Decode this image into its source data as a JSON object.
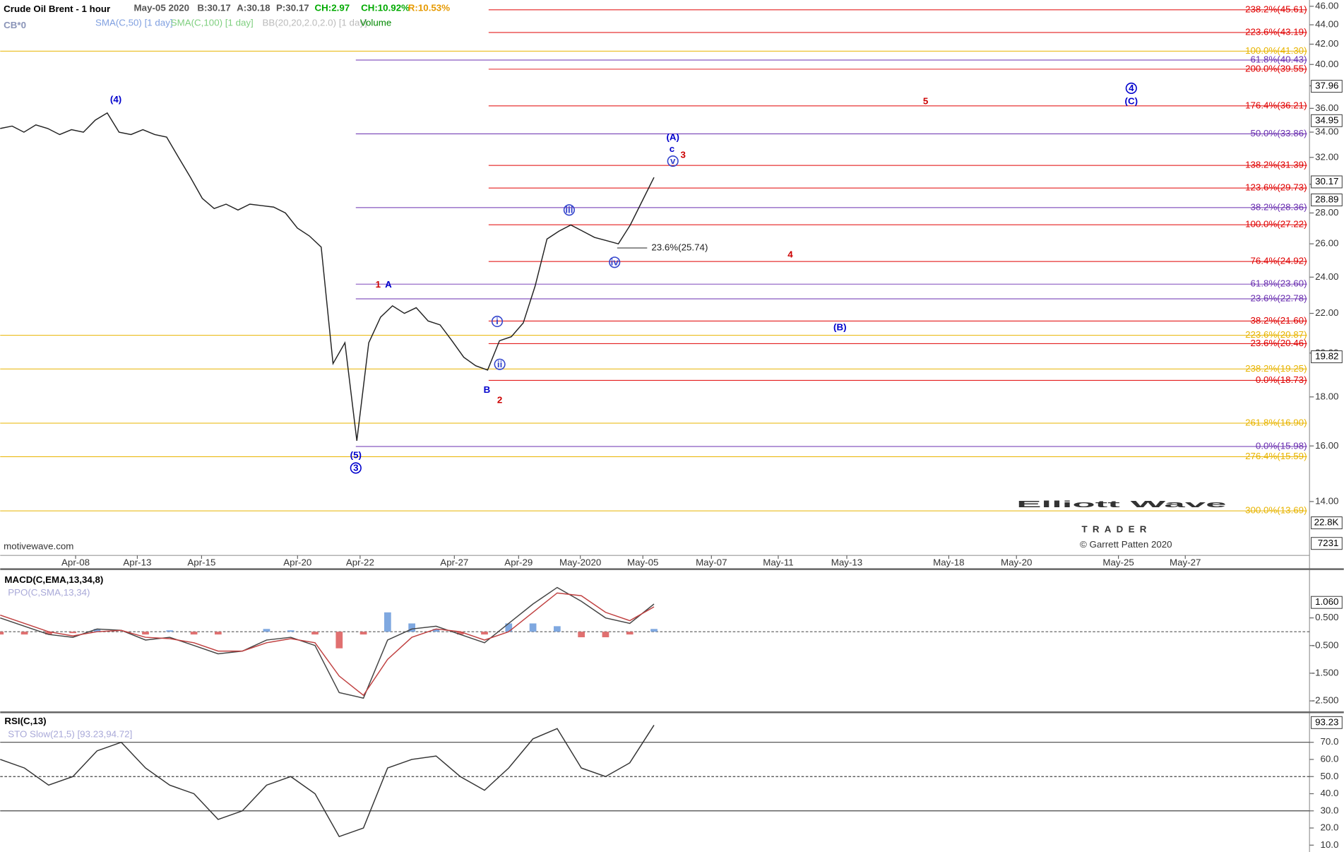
{
  "chart_data": [
    {
      "type": "line",
      "title": "Crude Oil Brent - 1 hour",
      "symbol": "CB*0",
      "header": [
        "May-05 2020",
        "B:30.17",
        "A:30.18",
        "P:30.17",
        "CH:2.97",
        "CH:10.92%",
        "R:10.53%"
      ],
      "header_colors": [
        "#555555",
        "#555555",
        "#555555",
        "#555555",
        "#00aa00",
        "#00aa00",
        "#e69900"
      ],
      "indicators": [
        "SMA(C,50) [1 day]",
        "SMA(C,100) [1 day]",
        "BB(20,20,2.0,2.0) [1 day]",
        "Volume"
      ],
      "indicator_colors": [
        "#7f9fe0",
        "#7fcf7f",
        "#bbbbbb",
        "#008800"
      ],
      "log_scale": true,
      "ylim": [
        12.3,
        46.7
      ],
      "yticks": [
        {
          "value": 14,
          "label": "14.00"
        },
        {
          "value": 16,
          "label": "16.00"
        },
        {
          "value": 18,
          "label": "18.00"
        },
        {
          "value": 20,
          "label": "20.00"
        },
        {
          "value": 22,
          "label": "22.00"
        },
        {
          "value": 24,
          "label": "24.00"
        },
        {
          "value": 26,
          "label": "26.00"
        },
        {
          "value": 28,
          "label": "28.00"
        },
        {
          "value": 30,
          "label": "30.00"
        },
        {
          "value": 32,
          "label": "32.00"
        },
        {
          "value": 34,
          "label": "34.00"
        },
        {
          "value": 36,
          "label": "36.00"
        },
        {
          "value": 38,
          "label": "38.00"
        },
        {
          "value": 40,
          "label": "40.00"
        },
        {
          "value": 42,
          "label": "42.00"
        },
        {
          "value": 44,
          "label": "44.00"
        },
        {
          "value": 46,
          "label": "46.00"
        }
      ],
      "x_labels": [
        "Apr-08",
        "Apr-13",
        "Apr-15",
        "Apr-20",
        "Apr-22",
        "Apr-27",
        "Apr-29",
        "May-2020",
        "May-05",
        "May-07",
        "May-11",
        "May-13",
        "May-18",
        "May-20",
        "May-25",
        "May-27"
      ],
      "series": [
        {
          "name": "Crude Oil Brent",
          "color": "#222222",
          "values": [
            34.3,
            34.5,
            34.0,
            34.6,
            34.3,
            33.8,
            34.2,
            34.0,
            35.0,
            35.6,
            34.0,
            33.8,
            34.2,
            33.8,
            33.6,
            32.0,
            30.5,
            29.0,
            28.3,
            28.6,
            28.2,
            28.6,
            28.5,
            28.4,
            28.0,
            27.0,
            26.5,
            25.8,
            19.5,
            20.5,
            16.2,
            20.5,
            21.8,
            22.4,
            22.0,
            22.3,
            21.6,
            21.4,
            20.6,
            19.8,
            19.4,
            19.2,
            20.6,
            20.8,
            21.5,
            23.5,
            26.3,
            26.8,
            27.2,
            26.8,
            26.4,
            26.2,
            26.0,
            27.2,
            28.8,
            30.5
          ]
        }
      ],
      "levels": [
        {
          "value": 45.61,
          "label": "238.2%(45.61)",
          "color": "#e00000"
        },
        {
          "value": 43.19,
          "label": "223.6%(43.19)",
          "color": "#e00000"
        },
        {
          "value": 41.3,
          "label": "100.0%(41.30)",
          "color": "#e8b400"
        },
        {
          "value": 40.43,
          "label": "61.8%(40.43)",
          "color": "#6a2fb0"
        },
        {
          "value": 39.55,
          "label": "200.0%(39.55)",
          "color": "#e00000"
        },
        {
          "value": 36.21,
          "label": "176.4%(36.21)",
          "color": "#e00000"
        },
        {
          "value": 33.86,
          "label": "50.0%(33.86)",
          "color": "#6a2fb0"
        },
        {
          "value": 31.39,
          "label": "138.2%(31.39)",
          "color": "#e00000"
        },
        {
          "value": 29.73,
          "label": "123.6%(29.73)",
          "color": "#e00000"
        },
        {
          "value": 28.36,
          "label": "38.2%(28.36)",
          "color": "#6a2fb0"
        },
        {
          "value": 27.22,
          "label": "100.0%(27.22)",
          "color": "#e00000"
        },
        {
          "value": 24.92,
          "label": "76.4%(24.92)",
          "color": "#e00000"
        },
        {
          "value": 23.6,
          "label": "61.8%(23.60)",
          "color": "#6a2fb0"
        },
        {
          "value": 22.78,
          "label": "23.6%(22.78)",
          "color": "#6a2fb0"
        },
        {
          "value": 21.6,
          "label": "38.2%(21.60)",
          "color": "#e00000"
        },
        {
          "value": 20.87,
          "label": "223.6%(20.87)",
          "color": "#e8b400"
        },
        {
          "value": 20.46,
          "label": "23.6%(20.46)",
          "color": "#e00000"
        },
        {
          "value": 19.25,
          "label": "238.2%(19.25)",
          "color": "#e8b400"
        },
        {
          "value": 18.73,
          "label": "0.0%(18.73)",
          "color": "#e00000"
        },
        {
          "value": 16.9,
          "label": "261.8%(16.90)",
          "color": "#e8b400"
        },
        {
          "value": 15.98,
          "label": "0.0%(15.98)",
          "color": "#6a2fb0"
        },
        {
          "value": 15.59,
          "label": "276.4%(15.59)",
          "color": "#e8b400"
        },
        {
          "value": 13.69,
          "label": "300.0%(13.69)",
          "color": "#e8b400"
        },
        {
          "value": 25.74,
          "label": "23.6%(25.74)",
          "color": "#222222"
        }
      ],
      "price_tags": [
        {
          "value": 37.96,
          "label": "37.96"
        },
        {
          "value": 34.95,
          "label": "34.95"
        },
        {
          "value": 30.17,
          "label": "30.17"
        },
        {
          "value": 28.89,
          "label": "28.89"
        },
        {
          "value": 19.82,
          "label": "19.82"
        }
      ],
      "volume_tags": [
        "22.8K",
        "7231"
      ],
      "annotations": [
        {
          "text": "(4)",
          "color": "#0000cc"
        },
        {
          "text": "(5)",
          "color": "#0000cc"
        },
        {
          "text": "3",
          "color": "#0000cc",
          "circled": true
        },
        {
          "text": "1",
          "color": "#cc0000"
        },
        {
          "text": "A",
          "color": "#0000cc"
        },
        {
          "text": "B",
          "color": "#0000cc"
        },
        {
          "text": "2",
          "color": "#cc0000"
        },
        {
          "text": "i",
          "color": "#3344cc",
          "circled": true
        },
        {
          "text": "ii",
          "color": "#3344cc",
          "circled": true
        },
        {
          "text": "iii",
          "color": "#3344cc",
          "circled": true
        },
        {
          "text": "iv",
          "color": "#3344cc",
          "circled": true
        },
        {
          "text": "v",
          "color": "#3344cc",
          "circled": true
        },
        {
          "text": "(A)",
          "color": "#0000cc"
        },
        {
          "text": "c",
          "color": "#0000cc"
        },
        {
          "text": "3",
          "color": "#cc0000"
        },
        {
          "text": "4",
          "color": "#cc0000"
        },
        {
          "text": "5",
          "color": "#cc0000"
        },
        {
          "text": "(B)",
          "color": "#0000cc"
        },
        {
          "text": "4",
          "color": "#0000cc",
          "circled": true
        },
        {
          "text": "(C)",
          "color": "#0000cc"
        }
      ],
      "watermark": "motivewave.com",
      "logo": {
        "name": "Elliott Wave",
        "sub": "TRADER",
        "copyright": "© Garrett Patten 2020"
      }
    },
    {
      "type": "macd",
      "title": "MACD(C,EMA,13,34,8)",
      "subtitle": "PPO(C,SMA,13,34)",
      "ylim": [
        -2.85,
        2.2
      ],
      "yticks": [
        {
          "value": 0.5,
          "label": "0.500"
        },
        {
          "value": -0.5,
          "label": "-0.500"
        },
        {
          "value": -1.5,
          "label": "-1.500"
        },
        {
          "value": -2.5,
          "label": "-2.500"
        }
      ],
      "tag": {
        "value": 1.06,
        "label": "1.060"
      },
      "series": [
        {
          "name": "MACD",
          "color": "#444444",
          "values": [
            0.5,
            0.2,
            -0.1,
            -0.2,
            0.1,
            0.05,
            -0.3,
            -0.2,
            -0.5,
            -0.8,
            -0.7,
            -0.3,
            -0.2,
            -0.5,
            -2.2,
            -2.4,
            -0.3,
            0.1,
            0.2,
            -0.1,
            -0.4,
            0.3,
            1.0,
            1.6,
            1.1,
            0.5,
            0.3,
            1.0
          ]
        },
        {
          "name": "Signal",
          "color": "#c04040",
          "values": [
            0.6,
            0.3,
            0.0,
            -0.15,
            0.0,
            0.05,
            -0.2,
            -0.25,
            -0.4,
            -0.7,
            -0.7,
            -0.4,
            -0.25,
            -0.4,
            -1.6,
            -2.3,
            -1.0,
            -0.2,
            0.1,
            0.0,
            -0.3,
            0.0,
            0.7,
            1.4,
            1.3,
            0.7,
            0.4,
            0.9
          ]
        }
      ],
      "histogram": [
        -0.1,
        -0.1,
        -0.1,
        -0.05,
        0.1,
        0,
        -0.1,
        0.05,
        -0.1,
        -0.1,
        0,
        0.1,
        0.05,
        -0.1,
        -0.6,
        -0.1,
        0.7,
        0.3,
        0.1,
        -0.1,
        -0.1,
        0.3,
        0.3,
        0.2,
        -0.2,
        -0.2,
        -0.1,
        0.1
      ]
    },
    {
      "type": "rsi",
      "title": "RSI(C,13)",
      "subtitle": "STO Slow(21,5) [93.23,94.72]",
      "ylim": [
        7,
        85.5
      ],
      "yticks": [
        {
          "value": 70,
          "label": "70.0"
        },
        {
          "value": 60,
          "label": "60.0"
        },
        {
          "value": 50,
          "label": "50.0"
        },
        {
          "value": 40,
          "label": "40.0"
        },
        {
          "value": 30,
          "label": "30.0"
        },
        {
          "value": 20,
          "label": "20.0"
        },
        {
          "value": 10,
          "label": "10.0"
        }
      ],
      "guides": [
        70,
        50,
        30
      ],
      "tag": {
        "value": 93.23,
        "label": "93.23"
      },
      "series": [
        {
          "name": "RSI",
          "color": "#333333",
          "values": [
            60,
            55,
            45,
            50,
            65,
            70,
            55,
            45,
            40,
            25,
            30,
            45,
            50,
            40,
            15,
            20,
            55,
            60,
            62,
            50,
            42,
            55,
            72,
            78,
            55,
            50,
            58,
            80
          ]
        }
      ]
    }
  ]
}
